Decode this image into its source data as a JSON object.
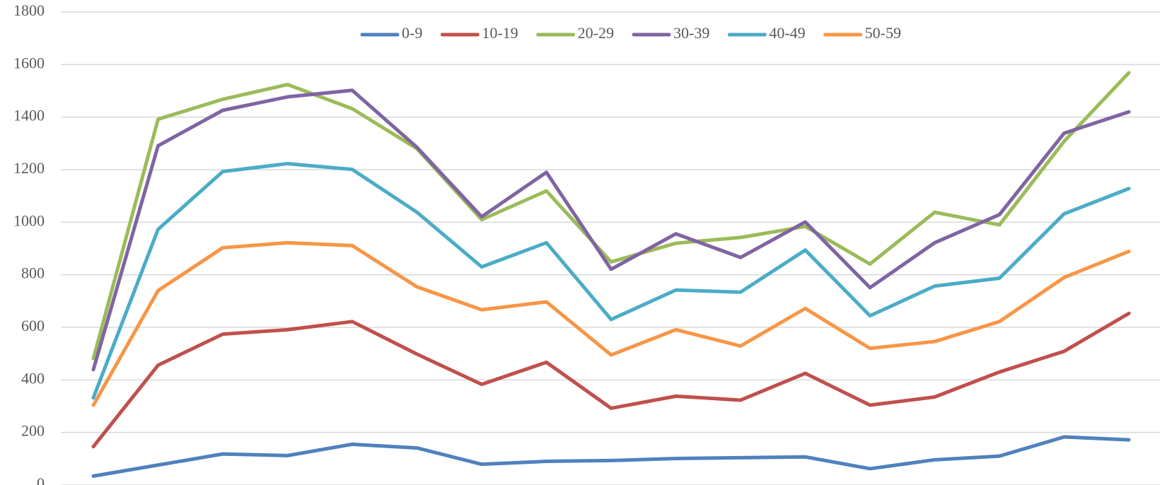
{
  "chart_data": {
    "type": "line",
    "categories": [
      null,
      null,
      null,
      null,
      null,
      null,
      null,
      null,
      null,
      null,
      null,
      null,
      null,
      null,
      null,
      null,
      null
    ],
    "series": [
      {
        "name": "0-9",
        "color": "#4f81bd",
        "values": [
          34,
          76,
          118,
          112,
          155,
          141,
          79,
          90,
          93,
          101,
          104,
          107,
          62,
          96,
          110,
          183,
          172
        ]
      },
      {
        "name": "10-19",
        "color": "#c0504d",
        "values": [
          146,
          456,
          574,
          591,
          622,
          498,
          383,
          467,
          292,
          338,
          323,
          425,
          304,
          335,
          430,
          509,
          653
        ]
      },
      {
        "name": "20-29",
        "color": "#9bbb59",
        "values": [
          481,
          1392,
          1468,
          1524,
          1432,
          1280,
          1010,
          1119,
          849,
          920,
          942,
          984,
          841,
          1038,
          990,
          1308,
          1569
        ]
      },
      {
        "name": "30-39",
        "color": "#8064a2",
        "values": [
          439,
          1291,
          1426,
          1477,
          1502,
          1285,
          1021,
          1190,
          821,
          956,
          866,
          1001,
          751,
          922,
          1029,
          1339,
          1420
        ]
      },
      {
        "name": "40-49",
        "color": "#4bacc6",
        "values": [
          332,
          973,
          1193,
          1223,
          1201,
          1038,
          830,
          922,
          630,
          742,
          734,
          894,
          644,
          757,
          787,
          1032,
          1128
        ]
      },
      {
        "name": "50-59",
        "color": "#f79646",
        "values": [
          304,
          740,
          903,
          922,
          911,
          754,
          667,
          697,
          495,
          591,
          529,
          672,
          520,
          546,
          622,
          790,
          889
        ]
      }
    ],
    "ylim": [
      0,
      1800
    ],
    "yticks": [
      0,
      200,
      400,
      600,
      800,
      1000,
      1200,
      1400,
      1600,
      1800
    ],
    "grid": true,
    "legend": "top"
  }
}
